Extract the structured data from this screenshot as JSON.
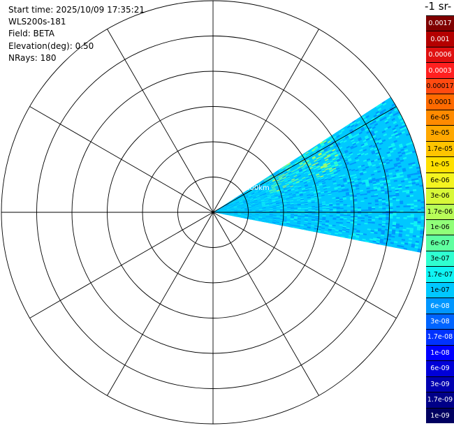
{
  "info": {
    "start_time": "Start time: 2025/10/09 17:35:21",
    "instrument": "WLS200s-181",
    "field": "Field: BETA",
    "elevation": "Elevation(deg): 0.50",
    "nrays": "NRays: 180"
  },
  "unit_label": "-1 sr-",
  "range_label": "1.00km",
  "chart_data": {
    "type": "heatmap",
    "projection": "polar-ppi",
    "field": "BETA",
    "sector": {
      "start_azimuth_deg": 57,
      "end_azimuth_deg": 101,
      "dominant_class": "1e-07 to 1e-06",
      "near_range_patches": "1.7e-06 to 1.7e-05"
    },
    "range_rings_km": [
      0.5,
      1,
      1.5,
      2,
      2.5
    ],
    "spokes_deg": [
      0,
      30,
      60,
      90,
      120,
      150,
      180,
      210,
      240,
      270,
      300,
      330
    ],
    "colorbar": [
      {
        "label": "0.0017",
        "color": "#800000"
      },
      {
        "label": "0.001",
        "color": "#b40000"
      },
      {
        "label": "0.0006",
        "color": "#e01010"
      },
      {
        "label": "0.0003",
        "color": "#ff2020"
      },
      {
        "label": "0.00017",
        "color": "#ff4a10"
      },
      {
        "label": "0.0001",
        "color": "#ff6a00"
      },
      {
        "label": "6e-05",
        "color": "#ff8a00"
      },
      {
        "label": "3e-05",
        "color": "#ffa800"
      },
      {
        "label": "1.7e-05",
        "color": "#ffc400"
      },
      {
        "label": "1e-05",
        "color": "#ffe000"
      },
      {
        "label": "6e-06",
        "color": "#f4f420"
      },
      {
        "label": "3e-06",
        "color": "#d8f838"
      },
      {
        "label": "1.7e-06",
        "color": "#b8fc58"
      },
      {
        "label": "1e-06",
        "color": "#90ff78"
      },
      {
        "label": "6e-07",
        "color": "#60ffa0"
      },
      {
        "label": "3e-07",
        "color": "#30ffd0"
      },
      {
        "label": "1.7e-07",
        "color": "#10f4f4"
      },
      {
        "label": "1e-07",
        "color": "#00c8ff"
      },
      {
        "label": "6e-08",
        "color": "#0096ff"
      },
      {
        "label": "3e-08",
        "color": "#0064ff"
      },
      {
        "label": "1.7e-08",
        "color": "#0032ff"
      },
      {
        "label": "1e-08",
        "color": "#0000ff"
      },
      {
        "label": "6e-09",
        "color": "#0000d8"
      },
      {
        "label": "3e-09",
        "color": "#0000b0"
      },
      {
        "label": "1.7e-09",
        "color": "#000088"
      },
      {
        "label": "1e-09",
        "color": "#000060"
      }
    ]
  }
}
